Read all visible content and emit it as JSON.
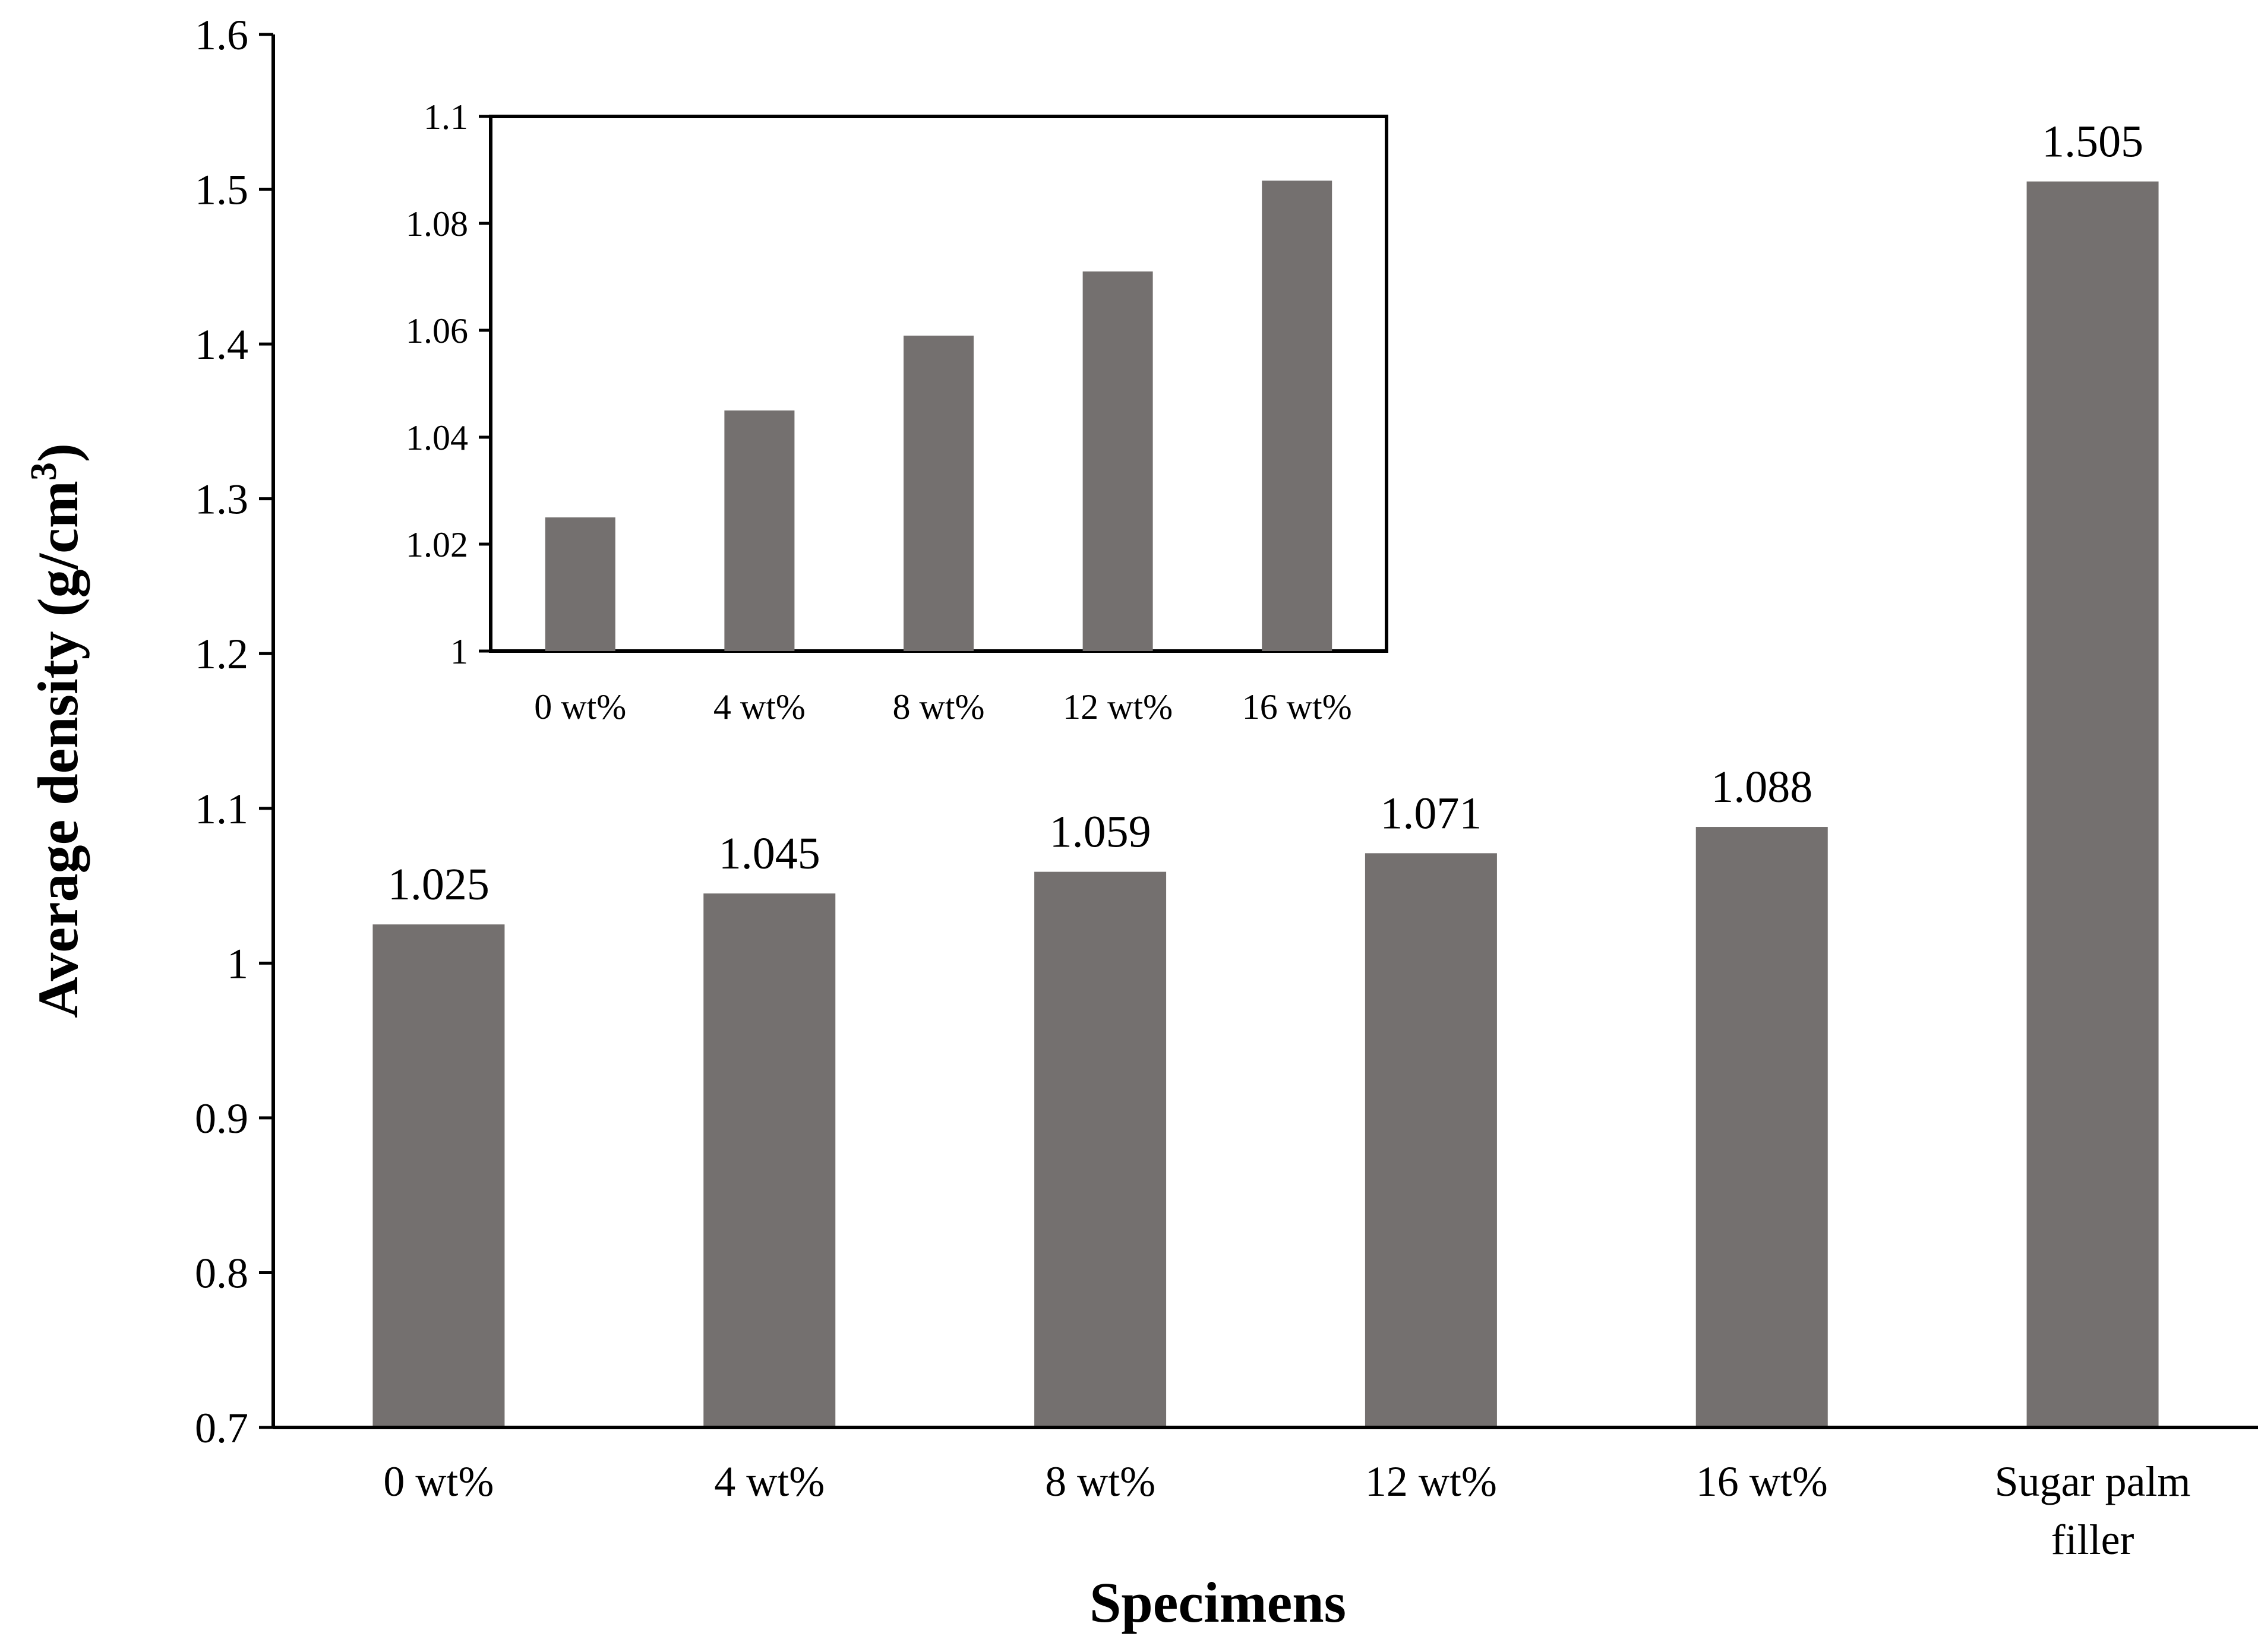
{
  "chart_data": [
    {
      "type": "bar",
      "title": "",
      "categories": [
        "0 wt%",
        "4 wt%",
        "8 wt%",
        "12 wt%",
        "16 wt%",
        "Sugar palm filler"
      ],
      "category_lines": [
        [
          "0 wt%"
        ],
        [
          "4 wt%"
        ],
        [
          "8 wt%"
        ],
        [
          "12 wt%"
        ],
        [
          "16 wt%"
        ],
        [
          "Sugar palm",
          "filler"
        ]
      ],
      "values": [
        1.025,
        1.045,
        1.059,
        1.071,
        1.088,
        1.505
      ],
      "data_labels": [
        "1.025",
        "1.045",
        "1.059",
        "1.071",
        "1.088",
        "1.505"
      ],
      "xlabel": "Specimens",
      "ylabel_main": "Average density (g/cm",
      "ylabel_sup": "3",
      "ylabel_end": ")",
      "ylim": [
        0.7,
        1.6
      ],
      "yticks": [
        0.7,
        0.8,
        0.9,
        1.0,
        1.1,
        1.2,
        1.3,
        1.4,
        1.5,
        1.6
      ],
      "ytick_labels": [
        "0.7",
        "0.8",
        "0.9",
        "1",
        "1.1",
        "1.2",
        "1.3",
        "1.4",
        "1.5",
        "1.6"
      ],
      "grid": false,
      "bar_color": "#74706f"
    },
    {
      "type": "bar",
      "title": "",
      "categories": [
        "0 wt%",
        "4 wt%",
        "8 wt%",
        "12 wt%",
        "16 wt%"
      ],
      "values": [
        1.025,
        1.045,
        1.059,
        1.071,
        1.088
      ],
      "ylim": [
        1.0,
        1.1
      ],
      "yticks": [
        1.0,
        1.02,
        1.04,
        1.06,
        1.08,
        1.1
      ],
      "ytick_labels": [
        "1",
        "1.02",
        "1.04",
        "1.06",
        "1.08",
        "1.1"
      ],
      "grid": false,
      "bar_color": "#74706f"
    }
  ]
}
